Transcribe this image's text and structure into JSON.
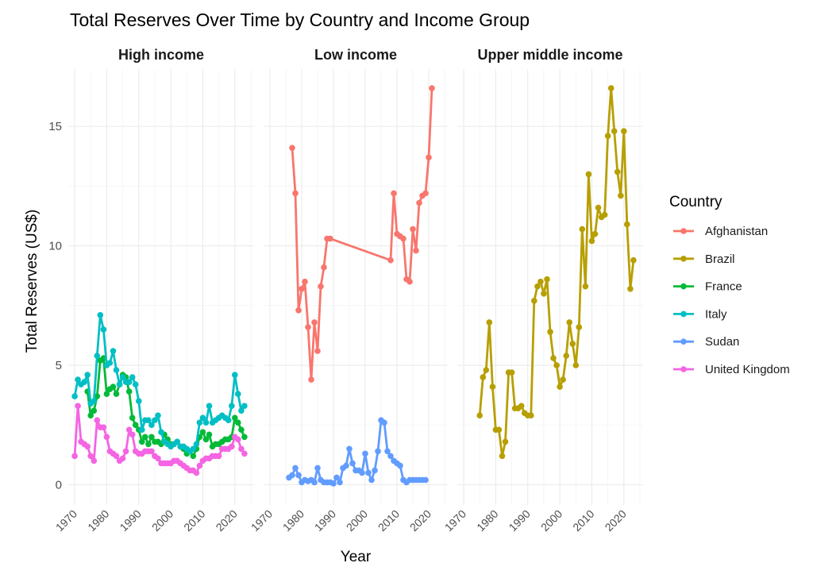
{
  "chart_data": {
    "type": "line",
    "title": "Total Reserves Over Time by Country and Income Group",
    "xlabel": "Year",
    "ylabel": "Total Reserves (US$)",
    "xlim": [
      1968,
      2026
    ],
    "ylim": [
      -0.85,
      17.4
    ],
    "xticks": [
      1970,
      1980,
      1990,
      2000,
      2010,
      2020
    ],
    "yticks": [
      0,
      5,
      10,
      15
    ],
    "legend_title": "Country",
    "legend_position": "right",
    "panels": [
      {
        "label": "High income",
        "series": [
          "France",
          "Italy",
          "United Kingdom"
        ]
      },
      {
        "label": "Low income",
        "series": [
          "Afghanistan",
          "Sudan"
        ]
      },
      {
        "label": "Upper middle income",
        "series": [
          "Brazil"
        ]
      }
    ],
    "series": [
      {
        "name": "Afghanistan",
        "color": "#F8766D",
        "x": [
          1977,
          1978,
          1979,
          1980,
          1981,
          1982,
          1983,
          1984,
          1985,
          1986,
          1987,
          1988,
          1989,
          2008,
          2009,
          2010,
          2011,
          2012,
          2013,
          2014,
          2015,
          2016,
          2017,
          2018,
          2019,
          2020,
          2021
        ],
        "y": [
          14.1,
          12.2,
          7.3,
          8.2,
          8.5,
          6.6,
          4.4,
          6.8,
          5.6,
          8.3,
          9.1,
          10.3,
          10.3,
          9.4,
          12.2,
          10.5,
          10.4,
          10.3,
          8.6,
          8.5,
          10.7,
          9.8,
          11.8,
          12.1,
          12.2,
          13.7,
          16.6
        ]
      },
      {
        "name": "Brazil",
        "color": "#B79F00",
        "x": [
          1975,
          1976,
          1977,
          1978,
          1979,
          1980,
          1981,
          1982,
          1983,
          1984,
          1985,
          1986,
          1987,
          1988,
          1989,
          1990,
          1991,
          1992,
          1993,
          1994,
          1995,
          1996,
          1997,
          1998,
          1999,
          2000,
          2001,
          2002,
          2003,
          2004,
          2005,
          2006,
          2007,
          2008,
          2009,
          2010,
          2011,
          2012,
          2013,
          2014,
          2015,
          2016,
          2017,
          2018,
          2019,
          2020,
          2021,
          2022,
          2023
        ],
        "y": [
          2.9,
          4.5,
          4.8,
          6.8,
          4.1,
          2.3,
          2.3,
          1.2,
          1.8,
          4.7,
          4.7,
          3.2,
          3.2,
          3.3,
          3.0,
          2.9,
          2.9,
          7.7,
          8.3,
          8.5,
          8.0,
          8.6,
          6.4,
          5.3,
          5.0,
          4.1,
          4.4,
          5.4,
          6.8,
          5.9,
          5.0,
          6.6,
          10.7,
          8.3,
          13.0,
          10.2,
          10.5,
          11.6,
          11.2,
          11.3,
          14.6,
          16.6,
          14.8,
          13.1,
          12.1,
          14.8,
          10.9,
          8.2,
          9.4
        ]
      },
      {
        "name": "France",
        "color": "#00BA38",
        "x": [
          1974,
          1975,
          1976,
          1977,
          1978,
          1979,
          1980,
          1981,
          1982,
          1983,
          1984,
          1985,
          1986,
          1987,
          1988,
          1989,
          1990,
          1991,
          1992,
          1993,
          1994,
          1995,
          1996,
          1997,
          1998,
          1999,
          2000,
          2001,
          2002,
          2003,
          2004,
          2005,
          2006,
          2007,
          2008,
          2009,
          2010,
          2011,
          2012,
          2013,
          2014,
          2015,
          2016,
          2017,
          2018,
          2019,
          2020,
          2021,
          2022,
          2023
        ],
        "y": [
          3.9,
          2.9,
          3.1,
          3.7,
          5.2,
          5.3,
          3.8,
          4.0,
          4.1,
          3.8,
          4.2,
          4.6,
          4.5,
          3.9,
          2.8,
          2.5,
          2.3,
          1.8,
          2.0,
          1.7,
          2.0,
          1.8,
          1.8,
          1.7,
          2.1,
          1.9,
          1.7,
          1.7,
          1.8,
          1.6,
          1.5,
          1.3,
          1.4,
          1.2,
          1.5,
          2.0,
          2.2,
          1.9,
          2.1,
          1.6,
          1.7,
          1.7,
          1.8,
          1.9,
          1.9,
          2.0,
          2.8,
          2.6,
          2.3,
          2.0
        ]
      },
      {
        "name": "Italy",
        "color": "#00BFC4",
        "x": [
          1970,
          1971,
          1972,
          1973,
          1974,
          1975,
          1976,
          1977,
          1978,
          1979,
          1980,
          1981,
          1982,
          1983,
          1984,
          1985,
          1986,
          1987,
          1988,
          1989,
          1990,
          1991,
          1992,
          1993,
          1994,
          1995,
          1996,
          1997,
          1998,
          1999,
          2000,
          2001,
          2002,
          2003,
          2004,
          2005,
          2006,
          2007,
          2008,
          2009,
          2010,
          2011,
          2012,
          2013,
          2014,
          2015,
          2016,
          2017,
          2018,
          2019,
          2020,
          2021,
          2022,
          2023
        ],
        "y": [
          3.7,
          4.4,
          4.2,
          4.3,
          4.6,
          3.4,
          3.5,
          5.4,
          7.1,
          6.5,
          5.0,
          5.1,
          5.6,
          4.8,
          4.2,
          4.5,
          4.3,
          4.3,
          4.5,
          4.2,
          3.5,
          2.3,
          2.7,
          2.7,
          2.5,
          2.7,
          2.9,
          2.2,
          1.8,
          1.7,
          1.6,
          1.7,
          1.8,
          1.6,
          1.6,
          1.5,
          1.4,
          1.5,
          1.7,
          2.6,
          2.8,
          2.6,
          3.3,
          2.6,
          2.7,
          2.8,
          2.9,
          2.8,
          2.7,
          3.3,
          4.6,
          3.8,
          3.1,
          3.3
        ]
      },
      {
        "name": "Sudan",
        "color": "#619CFF",
        "x": [
          1976,
          1977,
          1978,
          1979,
          1980,
          1981,
          1982,
          1983,
          1984,
          1985,
          1986,
          1987,
          1988,
          1989,
          1990,
          1991,
          1992,
          1993,
          1994,
          1995,
          1996,
          1997,
          1998,
          1999,
          2000,
          2001,
          2002,
          2003,
          2004,
          2005,
          2006,
          2007,
          2008,
          2009,
          2010,
          2011,
          2012,
          2013,
          2014,
          2015,
          2016,
          2017,
          2018,
          2019
        ],
        "y": [
          0.3,
          0.4,
          0.7,
          0.4,
          0.1,
          0.2,
          0.15,
          0.2,
          0.1,
          0.7,
          0.2,
          0.1,
          0.1,
          0.1,
          0.05,
          0.3,
          0.1,
          0.7,
          0.8,
          1.5,
          0.9,
          0.6,
          0.6,
          0.5,
          1.3,
          0.5,
          0.2,
          0.6,
          1.4,
          2.7,
          2.6,
          1.4,
          1.2,
          1.0,
          0.9,
          0.8,
          0.2,
          0.1,
          0.2,
          0.2,
          0.2,
          0.2,
          0.2,
          0.2
        ]
      },
      {
        "name": "United Kingdom",
        "color": "#F564E3",
        "x": [
          1970,
          1971,
          1972,
          1973,
          1974,
          1975,
          1976,
          1977,
          1978,
          1979,
          1980,
          1981,
          1982,
          1983,
          1984,
          1985,
          1986,
          1987,
          1988,
          1989,
          1990,
          1991,
          1992,
          1993,
          1994,
          1995,
          1996,
          1997,
          1998,
          1999,
          2000,
          2001,
          2002,
          2003,
          2004,
          2005,
          2006,
          2007,
          2008,
          2009,
          2010,
          2011,
          2012,
          2013,
          2014,
          2015,
          2016,
          2017,
          2018,
          2019,
          2020,
          2021,
          2022,
          2023
        ],
        "y": [
          1.2,
          3.3,
          1.8,
          1.7,
          1.6,
          1.2,
          1.0,
          2.7,
          2.4,
          2.4,
          2.0,
          1.4,
          1.3,
          1.2,
          1.0,
          1.1,
          1.4,
          2.3,
          2.1,
          1.4,
          1.3,
          1.3,
          1.4,
          1.4,
          1.4,
          1.2,
          1.1,
          0.9,
          0.9,
          0.9,
          0.9,
          1.0,
          1.0,
          0.9,
          0.8,
          0.7,
          0.6,
          0.6,
          0.5,
          0.8,
          1.0,
          1.1,
          1.1,
          1.2,
          1.2,
          1.2,
          1.5,
          1.5,
          1.5,
          1.6,
          2.0,
          1.9,
          1.5,
          1.3
        ]
      }
    ]
  }
}
